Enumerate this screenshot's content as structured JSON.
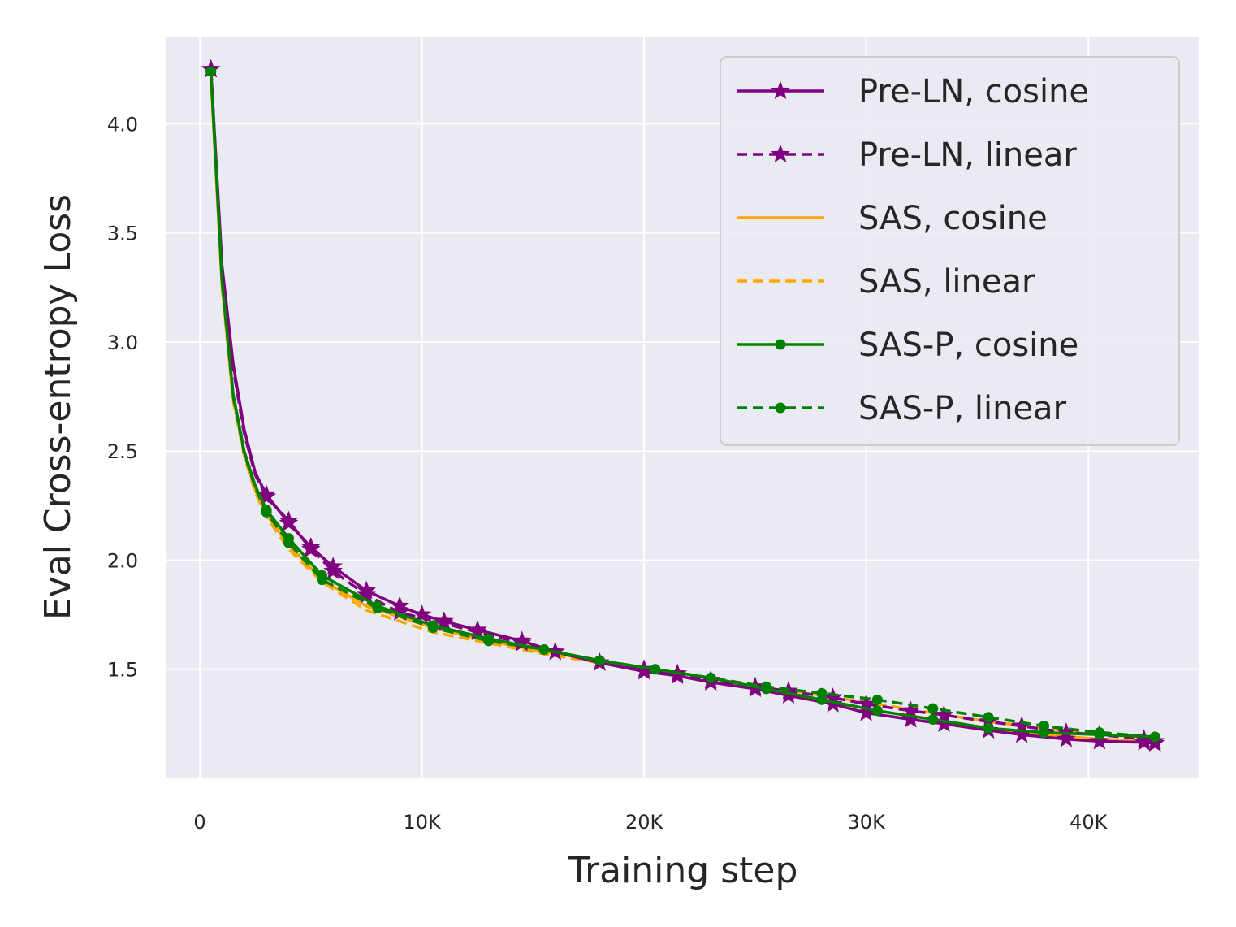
{
  "chart_data": {
    "type": "line",
    "title": "",
    "xlabel": "Training step",
    "ylabel": "Eval Cross-entropy Loss",
    "xlim": [
      -1500,
      45000
    ],
    "ylim": [
      1.0,
      4.4
    ],
    "xticks": [
      0,
      10000,
      20000,
      30000,
      40000
    ],
    "xtick_labels": [
      "0",
      "10K",
      "20K",
      "30K",
      "40K"
    ],
    "yticks": [
      1.5,
      2.0,
      2.5,
      3.0,
      3.5,
      4.0
    ],
    "ytick_labels": [
      "1.5",
      "2.0",
      "2.5",
      "3.0",
      "3.5",
      "4.0"
    ],
    "grid": true,
    "legend_position": "top-right",
    "series": [
      {
        "name": "Pre-LN, cosine",
        "color": "#800080",
        "dash": "solid",
        "marker": "star",
        "x": [
          500,
          1000,
          1500,
          2000,
          2500,
          3000,
          4000,
          5000,
          6000,
          7500,
          9000,
          10000,
          11000,
          12500,
          14500,
          16000,
          18000,
          20000,
          21500,
          23000,
          25000,
          26500,
          28500,
          30000,
          32000,
          33500,
          35500,
          37000,
          39000,
          40500,
          42500,
          43000
        ],
        "y": [
          4.25,
          3.35,
          2.9,
          2.6,
          2.4,
          2.3,
          2.17,
          2.06,
          1.97,
          1.86,
          1.79,
          1.75,
          1.72,
          1.68,
          1.63,
          1.58,
          1.53,
          1.49,
          1.47,
          1.44,
          1.41,
          1.38,
          1.34,
          1.3,
          1.27,
          1.25,
          1.22,
          1.2,
          1.18,
          1.17,
          1.165,
          1.16
        ]
      },
      {
        "name": "Pre-LN, linear",
        "color": "#800080",
        "dash": "dashed",
        "marker": "star",
        "x": [
          500,
          1000,
          1500,
          2000,
          2500,
          3000,
          4000,
          5000,
          6000,
          7500,
          9000,
          11000,
          12500,
          14500,
          16000,
          18000,
          20000,
          21500,
          23000,
          25000,
          26500,
          28500,
          30000,
          32000,
          33500,
          35500,
          37000,
          39000,
          40500,
          42500,
          43000
        ],
        "y": [
          4.25,
          3.33,
          2.88,
          2.58,
          2.39,
          2.29,
          2.18,
          2.05,
          1.95,
          1.84,
          1.76,
          1.71,
          1.67,
          1.62,
          1.58,
          1.53,
          1.5,
          1.48,
          1.45,
          1.42,
          1.4,
          1.37,
          1.34,
          1.31,
          1.29,
          1.26,
          1.24,
          1.21,
          1.2,
          1.18,
          1.17
        ]
      },
      {
        "name": "SAS, cosine",
        "color": "#ffa500",
        "dash": "solid",
        "marker": "none",
        "x": [
          500,
          1000,
          1500,
          2000,
          2500,
          3000,
          4000,
          5500,
          7500,
          10500,
          13000,
          15500,
          18000,
          20500,
          23000,
          25500,
          28000,
          30500,
          33000,
          35500,
          38000,
          40500,
          43000
        ],
        "y": [
          4.22,
          3.26,
          2.74,
          2.49,
          2.32,
          2.21,
          2.07,
          1.91,
          1.79,
          1.69,
          1.63,
          1.58,
          1.54,
          1.5,
          1.46,
          1.41,
          1.36,
          1.31,
          1.27,
          1.23,
          1.2,
          1.18,
          1.17
        ]
      },
      {
        "name": "SAS, linear",
        "color": "#ffa500",
        "dash": "dashed",
        "marker": "none",
        "x": [
          500,
          1000,
          1500,
          2000,
          2500,
          3000,
          4000,
          5500,
          7500,
          10500,
          13000,
          15500,
          18000,
          20500,
          23000,
          25500,
          28000,
          30500,
          33000,
          35500,
          38000,
          40500,
          43000
        ],
        "y": [
          4.22,
          3.25,
          2.73,
          2.48,
          2.31,
          2.2,
          2.05,
          1.9,
          1.77,
          1.67,
          1.62,
          1.57,
          1.53,
          1.5,
          1.46,
          1.42,
          1.38,
          1.34,
          1.3,
          1.26,
          1.23,
          1.2,
          1.19
        ]
      },
      {
        "name": "SAS-P, cosine",
        "color": "#008000",
        "dash": "solid",
        "marker": "dot",
        "x": [
          500,
          1000,
          1500,
          2000,
          2500,
          3000,
          4000,
          5500,
          8000,
          10500,
          13000,
          15500,
          18000,
          20500,
          23000,
          25500,
          28000,
          30500,
          33000,
          35500,
          38000,
          40500,
          43000
        ],
        "y": [
          4.24,
          3.28,
          2.76,
          2.5,
          2.34,
          2.23,
          2.1,
          1.93,
          1.79,
          1.7,
          1.64,
          1.59,
          1.54,
          1.5,
          1.46,
          1.41,
          1.36,
          1.31,
          1.27,
          1.23,
          1.21,
          1.2,
          1.19
        ]
      },
      {
        "name": "SAS-P, linear",
        "color": "#008000",
        "dash": "dashed",
        "marker": "dot",
        "x": [
          500,
          1000,
          1500,
          2000,
          2500,
          3000,
          4000,
          5500,
          8000,
          10500,
          13000,
          15500,
          18000,
          20500,
          23000,
          25500,
          28000,
          30500,
          33000,
          35500,
          38000,
          40500,
          43000
        ],
        "y": [
          4.24,
          3.28,
          2.75,
          2.49,
          2.33,
          2.22,
          2.08,
          1.91,
          1.78,
          1.69,
          1.63,
          1.59,
          1.54,
          1.5,
          1.46,
          1.42,
          1.39,
          1.36,
          1.32,
          1.28,
          1.24,
          1.21,
          1.19
        ]
      }
    ]
  }
}
